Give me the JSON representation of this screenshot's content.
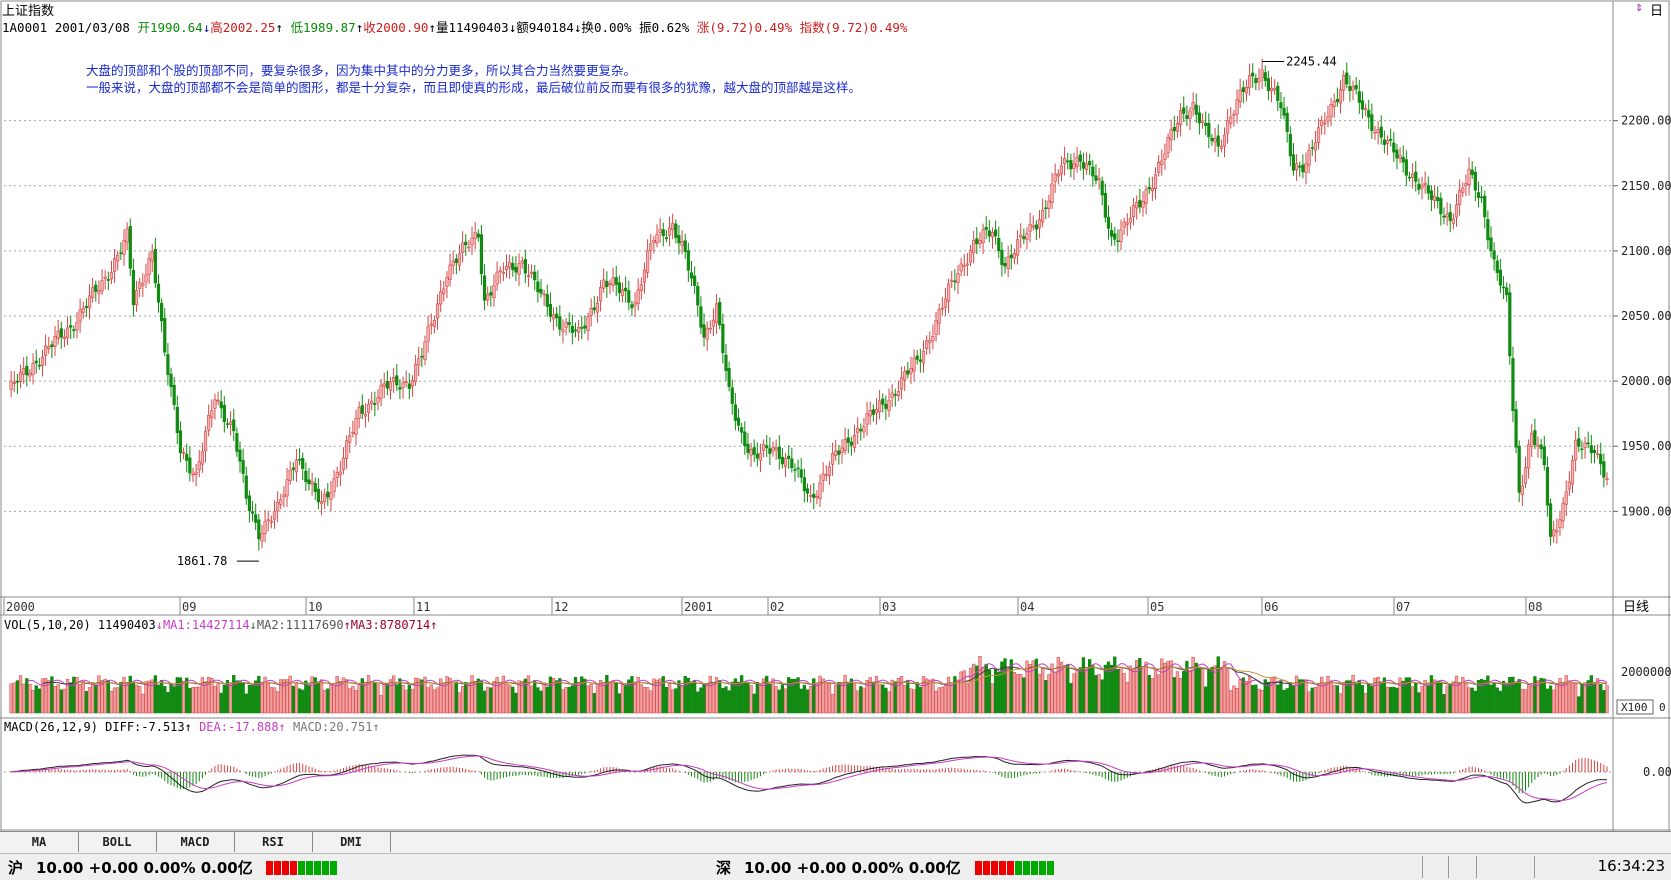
{
  "header": {
    "title": "上证指数",
    "code": "1A0001",
    "date": "2001/03/08",
    "open_label": "开",
    "open": "1990.64",
    "high_label": "高",
    "high": "2002.25",
    "low_label": "低",
    "low": "1989.87",
    "close_label": "收",
    "close": "2000.90",
    "volume_label": "量",
    "volume": "11490403",
    "amount_label": "额",
    "amount": "940184",
    "turnover_label": "换",
    "turnover": "0.00%",
    "amplitude_label": "振",
    "amplitude": "0.62%",
    "change_label": "涨",
    "change": "(9.72)0.49%",
    "index_label": "指数",
    "index_change": "(9.72)0.49%",
    "corner_icon": "flag-icon",
    "corner_label": "日"
  },
  "annotation": {
    "line1": "大盘的顶部和个股的顶部不同，要复杂很多，因为集中其中的分力更多，所以其合力当然要更复杂。",
    "line2": "一般来说，大盘的顶部都不会是简单的图形，都是十分复杂，而且即使真的形成，最后破位前反而要有很多的犹豫，越大盘的顶部越是这样。"
  },
  "chart_data": {
    "type": "candlestick",
    "price_axis": {
      "ticks": [
        "2200.00",
        "2150.00",
        "2100.00",
        "2050.00",
        "2000.00",
        "1950.00",
        "1900.00"
      ],
      "ylim": [
        1835,
        2265
      ]
    },
    "marks": {
      "high": "2245.44",
      "low": "1861.78"
    },
    "x_labels": [
      "2000",
      "09",
      "10",
      "11",
      "12",
      "2001",
      "02",
      "03",
      "04",
      "05",
      "06",
      "07",
      "08"
    ],
    "period_label": "日线",
    "close_path_anchors": [
      [
        0,
        1992
      ],
      [
        10,
        2018
      ],
      [
        20,
        2042
      ],
      [
        30,
        2075
      ],
      [
        38,
        2110
      ],
      [
        40,
        2060
      ],
      [
        46,
        2100
      ],
      [
        50,
        2020
      ],
      [
        55,
        1950
      ],
      [
        60,
        1925
      ],
      [
        66,
        1990
      ],
      [
        72,
        1960
      ],
      [
        76,
        1910
      ],
      [
        80,
        1885
      ],
      [
        86,
        1900
      ],
      [
        92,
        1945
      ],
      [
        96,
        1920
      ],
      [
        100,
        1905
      ],
      [
        106,
        1935
      ],
      [
        112,
        1975
      ],
      [
        120,
        1995
      ],
      [
        128,
        2000
      ],
      [
        132,
        2020
      ],
      [
        136,
        2050
      ],
      [
        140,
        2085
      ],
      [
        146,
        2102
      ],
      [
        150,
        2115
      ],
      [
        152,
        2062
      ],
      [
        158,
        2085
      ],
      [
        164,
        2092
      ],
      [
        170,
        2065
      ],
      [
        176,
        2045
      ],
      [
        182,
        2035
      ],
      [
        190,
        2075
      ],
      [
        196,
        2070
      ],
      [
        200,
        2060
      ],
      [
        206,
        2110
      ],
      [
        212,
        2120
      ],
      [
        216,
        2095
      ],
      [
        220,
        2060
      ],
      [
        222,
        2035
      ],
      [
        226,
        2055
      ],
      [
        230,
        1990
      ],
      [
        234,
        1960
      ],
      [
        238,
        1940
      ],
      [
        244,
        1950
      ],
      [
        250,
        1935
      ],
      [
        256,
        1910
      ],
      [
        262,
        1935
      ],
      [
        268,
        1955
      ],
      [
        276,
        1975
      ],
      [
        282,
        1990
      ],
      [
        290,
        2015
      ],
      [
        296,
        2045
      ],
      [
        302,
        2080
      ],
      [
        308,
        2105
      ],
      [
        314,
        2115
      ],
      [
        318,
        2090
      ],
      [
        324,
        2110
      ],
      [
        330,
        2130
      ],
      [
        336,
        2165
      ],
      [
        342,
        2172
      ],
      [
        348,
        2150
      ],
      [
        352,
        2110
      ],
      [
        356,
        2118
      ],
      [
        362,
        2140
      ],
      [
        368,
        2170
      ],
      [
        374,
        2205
      ],
      [
        378,
        2212
      ],
      [
        382,
        2190
      ],
      [
        386,
        2180
      ],
      [
        390,
        2205
      ],
      [
        396,
        2230
      ],
      [
        400,
        2238
      ],
      [
        406,
        2210
      ],
      [
        410,
        2165
      ],
      [
        414,
        2168
      ],
      [
        420,
        2200
      ],
      [
        426,
        2232
      ],
      [
        430,
        2218
      ],
      [
        436,
        2195
      ],
      [
        442,
        2175
      ],
      [
        448,
        2158
      ],
      [
        454,
        2140
      ],
      [
        460,
        2125
      ],
      [
        466,
        2158
      ],
      [
        470,
        2140
      ],
      [
        474,
        2090
      ],
      [
        478,
        2060
      ],
      [
        480,
        1980
      ],
      [
        482,
        1915
      ],
      [
        486,
        1960
      ],
      [
        490,
        1935
      ],
      [
        492,
        1878
      ],
      [
        496,
        1905
      ],
      [
        500,
        1948
      ],
      [
        506,
        1950
      ],
      [
        510,
        1925
      ]
    ],
    "volume": {
      "label": "VOL(5,10,20)",
      "value": "11490403",
      "ma1_label": "MA1:",
      "ma1": "14427114",
      "ma2_label": "MA2:",
      "ma2": "11117690",
      "ma3_label": "MA3:",
      "ma3": "8780714",
      "axis_tick": "2000000",
      "axis_unit": "X100",
      "axis_zero": "0"
    },
    "macd": {
      "label": "MACD(26,12,9)",
      "diff_label": "DIFF:",
      "diff": "-7.513",
      "dea_label": "DEA:",
      "dea": "-17.888",
      "macd_label": "MACD:",
      "macd": "20.751",
      "axis_tick": "0.00"
    },
    "colors": {
      "up": "#d64545",
      "down": "#108a10",
      "ma1": "#c83cc8",
      "ma2": "#3c3c3c",
      "ma3": "#c89632",
      "grid": "#9aa"
    }
  },
  "tabs": [
    "MA",
    "BOLL",
    "MACD",
    "RSI",
    "DMI"
  ],
  "status": {
    "sh_label": "沪",
    "sh_text": "10.00 +0.00 0.00% 0.00亿",
    "sz_label": "深",
    "sz_text": "10.00 +0.00 0.00% 0.00亿",
    "clock": "16:34:23"
  }
}
